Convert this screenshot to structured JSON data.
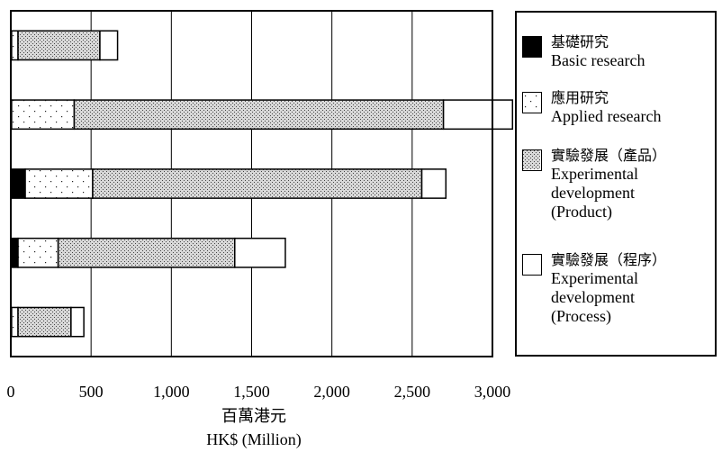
{
  "chart_data": {
    "type": "bar",
    "orientation": "horizontal",
    "stacked": true,
    "categories": [
      "",
      "",
      "",
      "",
      ""
    ],
    "series": [
      {
        "name": "基礎研究 Basic research",
        "key": "basic",
        "pattern": "solid-black",
        "values": [
          5,
          5,
          90,
          45,
          5
        ]
      },
      {
        "name": "應用研究 Applied research",
        "key": "applied",
        "pattern": "sparse-dots",
        "values": [
          40,
          390,
          420,
          250,
          40
        ]
      },
      {
        "name": "實驗發展（產品） Experimental development (Product)",
        "key": "product",
        "pattern": "dense-dots",
        "values": [
          510,
          2300,
          2050,
          1100,
          330
        ]
      },
      {
        "name": "實驗發展（程序） Experimental development (Process)",
        "key": "process",
        "pattern": "white",
        "values": [
          110,
          430,
          150,
          315,
          80
        ]
      }
    ],
    "xlim": [
      0,
      3000
    ],
    "xticks": [
      "0",
      "500",
      "1,000",
      "1,500",
      "2,000",
      "2,500",
      "3,000"
    ],
    "xlabel_zh": "百萬港元",
    "xlabel_en": "HK$ (Million)",
    "grid": "vertical",
    "legend": {
      "position": "right",
      "items": [
        {
          "zh": "基礎研究",
          "en": "Basic research",
          "pattern": "solid-black"
        },
        {
          "zh": "應用研究",
          "en": "Applied research",
          "pattern": "sparse-dots"
        },
        {
          "zh": "實驗發展（產品）",
          "en": "Experimental\ndevelopment\n(Product)",
          "pattern": "dense-dots"
        },
        {
          "zh": "實驗發展（程序）",
          "en": "Experimental\ndevelopment\n(Process)",
          "pattern": "white"
        }
      ]
    }
  }
}
